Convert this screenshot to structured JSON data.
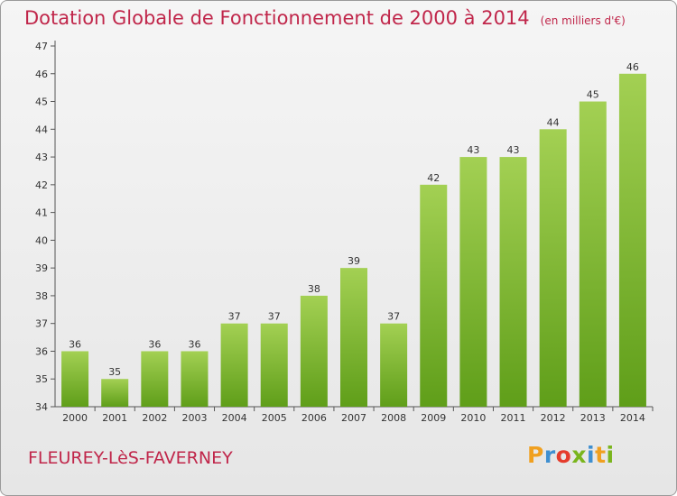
{
  "title": "Dotation Globale de Fonctionnement de 2000 à 2014",
  "unit": "(en milliers d'€)",
  "commune": "FLEUREY-LèS-FAVERNEY",
  "logo": [
    "P",
    "r",
    "o",
    "x",
    "i",
    "t",
    "i"
  ],
  "colors": {
    "accent": "#c0264a",
    "bar_top": "#a3d053",
    "bar_bottom": "#5f9e19"
  },
  "chart_data": {
    "type": "bar",
    "title": "Dotation Globale de Fonctionnement de 2000 à 2014",
    "subtitle": "(en milliers d'€)",
    "xlabel": "",
    "ylabel": "",
    "categories": [
      "2000",
      "2001",
      "2002",
      "2003",
      "2004",
      "2005",
      "2006",
      "2007",
      "2008",
      "2009",
      "2010",
      "2011",
      "2012",
      "2013",
      "2014"
    ],
    "values": [
      36,
      35,
      36,
      36,
      37,
      37,
      38,
      39,
      37,
      42,
      43,
      43,
      44,
      45,
      46
    ],
    "ylim": [
      34,
      47
    ],
    "yticks": [
      34,
      35,
      36,
      37,
      38,
      39,
      40,
      41,
      42,
      43,
      44,
      45,
      46,
      47
    ],
    "grid": false,
    "legend": "none"
  }
}
